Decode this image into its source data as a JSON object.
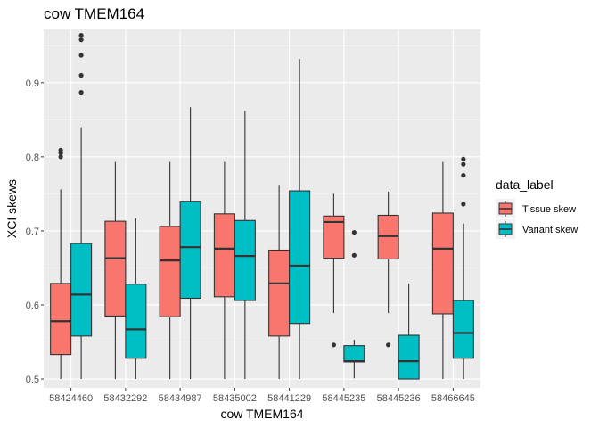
{
  "chart_data": {
    "type": "boxplot",
    "title": "cow TMEM164",
    "xlabel": "cow TMEM164",
    "ylabel": "XCI skews",
    "ylim": [
      0.488,
      0.972
    ],
    "yticks": [
      0.5,
      0.6,
      0.7,
      0.8,
      0.9
    ],
    "grid": true,
    "legend": {
      "title": "data_label",
      "position": "right"
    },
    "categories": [
      "58424460",
      "58432292",
      "58434987",
      "58435002",
      "58441229",
      "58445235",
      "58445236",
      "58466645"
    ],
    "series": [
      {
        "name": "Tissue skew",
        "color": "#F8766D",
        "boxes": [
          {
            "min": 0.5,
            "q1": 0.533,
            "median": 0.578,
            "q3": 0.629,
            "max": 0.756,
            "outliers": [
              0.8,
              0.805,
              0.809
            ]
          },
          {
            "min": 0.5,
            "q1": 0.585,
            "median": 0.663,
            "q3": 0.713,
            "max": 0.793,
            "outliers": []
          },
          {
            "min": 0.5,
            "q1": 0.584,
            "median": 0.66,
            "q3": 0.706,
            "max": 0.793,
            "outliers": []
          },
          {
            "min": 0.5,
            "q1": 0.611,
            "median": 0.676,
            "q3": 0.723,
            "max": 0.793,
            "outliers": []
          },
          {
            "min": 0.5,
            "q1": 0.558,
            "median": 0.629,
            "q3": 0.674,
            "max": 0.761,
            "outliers": []
          },
          {
            "min": 0.589,
            "q1": 0.663,
            "median": 0.712,
            "q3": 0.72,
            "max": 0.75,
            "outliers": [
              0.546
            ]
          },
          {
            "min": 0.589,
            "q1": 0.662,
            "median": 0.693,
            "q3": 0.721,
            "max": 0.753,
            "outliers": [
              0.546
            ]
          },
          {
            "min": 0.5,
            "q1": 0.588,
            "median": 0.676,
            "q3": 0.724,
            "max": 0.793,
            "outliers": []
          }
        ]
      },
      {
        "name": "Variant skew",
        "color": "#00BFC4",
        "boxes": [
          {
            "min": 0.5,
            "q1": 0.558,
            "median": 0.614,
            "q3": 0.683,
            "max": 0.84,
            "outliers": [
              0.887,
              0.91,
              0.937,
              0.958,
              0.964
            ]
          },
          {
            "min": 0.5,
            "q1": 0.528,
            "median": 0.567,
            "q3": 0.628,
            "max": 0.717,
            "outliers": []
          },
          {
            "min": 0.5,
            "q1": 0.609,
            "median": 0.678,
            "q3": 0.74,
            "max": 0.867,
            "outliers": []
          },
          {
            "min": 0.5,
            "q1": 0.606,
            "median": 0.666,
            "q3": 0.714,
            "max": 0.862,
            "outliers": []
          },
          {
            "min": 0.5,
            "q1": 0.575,
            "median": 0.653,
            "q3": 0.754,
            "max": 0.932,
            "outliers": []
          },
          {
            "min": 0.501,
            "q1": 0.523,
            "median": 0.524,
            "q3": 0.545,
            "max": 0.553,
            "outliers": [
              0.667,
              0.698
            ]
          },
          {
            "min": 0.5,
            "q1": 0.5,
            "median": 0.524,
            "q3": 0.559,
            "max": 0.629,
            "outliers": []
          },
          {
            "min": 0.5,
            "q1": 0.528,
            "median": 0.562,
            "q3": 0.606,
            "max": 0.71,
            "outliers": [
              0.736,
              0.79,
              0.797,
              0.775
            ]
          }
        ]
      }
    ]
  }
}
